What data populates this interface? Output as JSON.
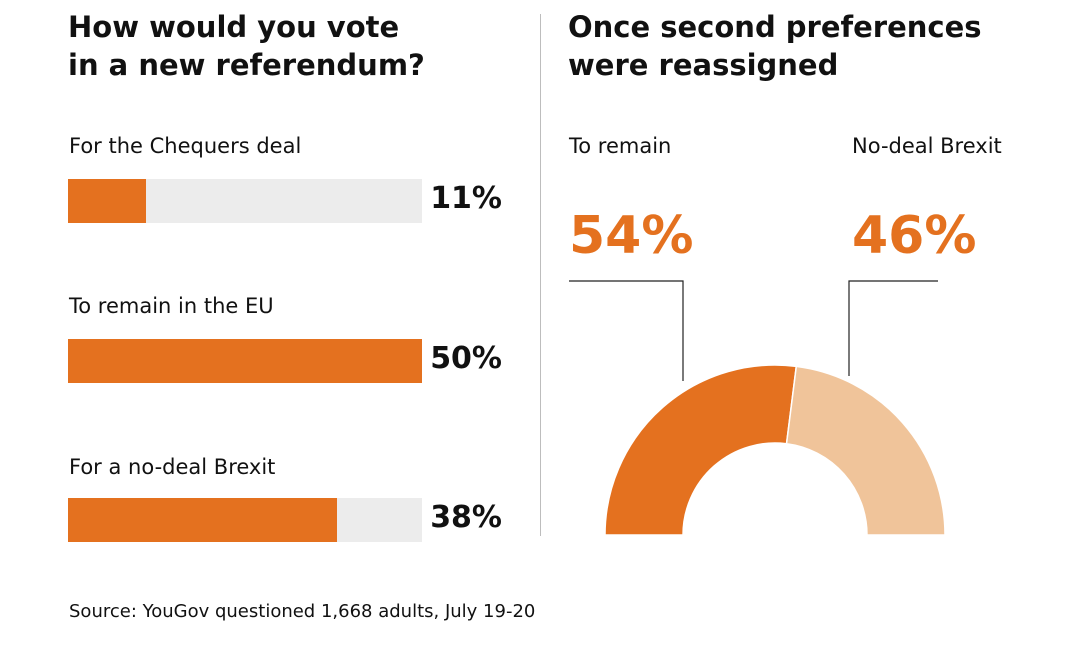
{
  "colors": {
    "primary": "#e4711f",
    "secondary": "#f0c49a",
    "track": "#ececec",
    "text": "#111111"
  },
  "left_title": "How would you vote\nin a new referendum?",
  "right_title": "Once second preferences\nwere reassigned",
  "source": "Source: YouGov questioned 1,668 adults, July 19-20",
  "chart_data": [
    {
      "type": "bar",
      "orientation": "horizontal",
      "title": "How would you vote in a new referendum?",
      "categories": [
        "For the Chequers deal",
        "To remain in the EU",
        "For a no-deal Brexit"
      ],
      "values": [
        11,
        50,
        38
      ],
      "value_labels": [
        "11%",
        "50%",
        "38%"
      ],
      "xlim": [
        0,
        50
      ],
      "unit": "%",
      "grid": false
    },
    {
      "type": "pie",
      "style": "half-donut",
      "title": "Once second preferences were reassigned",
      "categories": [
        "To remain",
        "No-deal Brexit"
      ],
      "values": [
        54,
        46
      ],
      "value_labels": [
        "54%",
        "46%"
      ],
      "unit": "%"
    }
  ]
}
